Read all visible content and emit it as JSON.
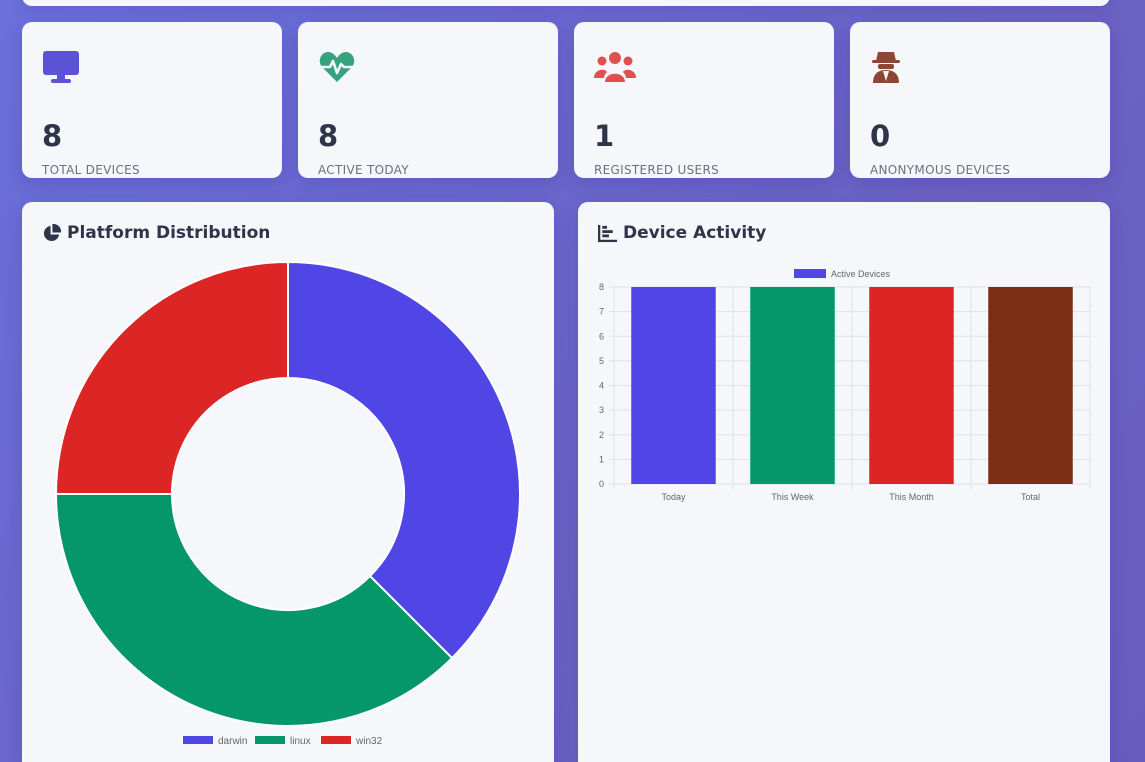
{
  "stats": [
    {
      "value": "8",
      "label": "TOTAL DEVICES",
      "icon": "desktop-icon",
      "color": "#5b52d8"
    },
    {
      "value": "8",
      "label": "ACTIVE TODAY",
      "icon": "heartbeat-icon",
      "color": "#35a37d"
    },
    {
      "value": "1",
      "label": "REGISTERED USERS",
      "icon": "users-icon",
      "color": "#e05050"
    },
    {
      "value": "0",
      "label": "ANONYMOUS DEVICES",
      "icon": "spy-icon",
      "color": "#8e4634"
    }
  ],
  "platform_panel": {
    "title": "Platform Distribution",
    "icon": "pie-chart-icon"
  },
  "activity_panel": {
    "title": "Device Activity",
    "icon": "bar-chart-icon"
  },
  "chart_data": [
    {
      "type": "pie",
      "title": "Platform Distribution",
      "categories": [
        "darwin",
        "linux",
        "win32"
      ],
      "values": [
        3,
        3,
        2
      ],
      "colors": [
        "#4f46e5",
        "#059669",
        "#dc2626"
      ],
      "legend": "bottom"
    },
    {
      "type": "bar",
      "title": "Device Activity",
      "categories": [
        "Today",
        "This Week",
        "This Month",
        "Total"
      ],
      "series": [
        {
          "name": "Active Devices",
          "values": [
            8,
            8,
            8,
            8
          ]
        }
      ],
      "colors": [
        "#4f46e5",
        "#059669",
        "#dc2626",
        "#7c2d12"
      ],
      "ylim": [
        0,
        8
      ],
      "yticks": [
        0,
        1,
        2,
        3,
        4,
        5,
        6,
        7,
        8
      ],
      "grid": true,
      "legend": "top"
    }
  ]
}
